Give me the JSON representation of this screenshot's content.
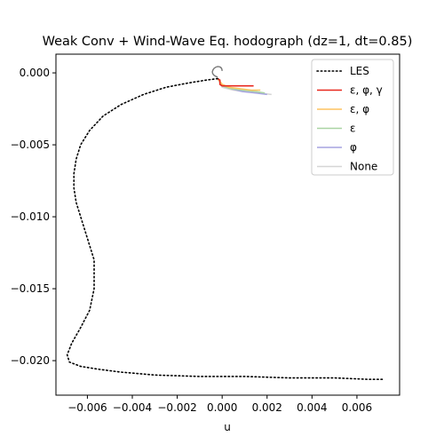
{
  "chart_data": {
    "type": "line",
    "title": "Weak Conv + Wind-Wave Eq. hodograph (dz=1, dt=0.85)",
    "xlabel": "u",
    "ylabel": "",
    "xlim": [
      -0.0074,
      0.0079
    ],
    "ylim": [
      -0.0224,
      0.0013
    ],
    "xticks": [
      -0.006,
      -0.004,
      -0.002,
      0.0,
      0.002,
      0.004,
      0.006
    ],
    "xtick_labels": [
      "−0.006",
      "−0.004",
      "−0.002",
      "0.000",
      "0.002",
      "0.004",
      "0.006"
    ],
    "yticks": [
      0.0,
      -0.005,
      -0.01,
      -0.015,
      -0.02
    ],
    "ytick_labels": [
      "0.000",
      "−0.005",
      "−0.010",
      "−0.015",
      "−0.020"
    ],
    "legend_position": "top-right",
    "grid": false,
    "series": [
      {
        "name": "LES",
        "color": "#000000",
        "style": "dotted",
        "x": [
          -0.0002,
          -0.0007,
          -0.0015,
          -0.0025,
          -0.0035,
          -0.0045,
          -0.0053,
          -0.0059,
          -0.0063,
          -0.0065,
          -0.0066,
          -0.0066,
          -0.0065,
          -0.0063,
          -0.0061,
          -0.0059,
          -0.0057,
          -0.0057,
          -0.0059,
          -0.0063,
          -0.0067,
          -0.0069,
          -0.0068,
          -0.0063,
          -0.0055,
          -0.0045,
          -0.003,
          -0.001,
          0.001,
          0.003,
          0.005,
          0.0065,
          0.0072
        ],
        "y": [
          -0.0004,
          -0.0005,
          -0.0007,
          -0.001,
          -0.0015,
          -0.0022,
          -0.003,
          -0.004,
          -0.005,
          -0.006,
          -0.007,
          -0.008,
          -0.009,
          -0.01,
          -0.011,
          -0.012,
          -0.013,
          -0.015,
          -0.0165,
          -0.0177,
          -0.0188,
          -0.0196,
          -0.0201,
          -0.0204,
          -0.0206,
          -0.0208,
          -0.021,
          -0.0211,
          -0.0211,
          -0.0212,
          -0.0212,
          -0.0213,
          -0.0213
        ]
      },
      {
        "name": "ε, φ, γ",
        "color": "#e8281e",
        "style": "solid",
        "x": [
          -0.0002,
          -0.0001,
          -0.0001,
          -0.0001,
          0.0,
          0.0003,
          0.0008,
          0.0014
        ],
        "y": [
          -0.0004,
          -0.0005,
          -0.0006,
          -0.0008,
          -0.0009,
          -0.0009,
          -0.0009,
          -0.0009
        ]
      },
      {
        "name": "ε, φ",
        "color": "#fec460",
        "style": "solid",
        "x": [
          -0.0002,
          -0.0001,
          0.0,
          0.0003,
          0.0008,
          0.0013,
          0.0017
        ],
        "y": [
          -0.0004,
          -0.0006,
          -0.0008,
          -0.001,
          -0.0011,
          -0.0012,
          -0.0012
        ]
      },
      {
        "name": "ε",
        "color": "#a9d4a3",
        "style": "solid",
        "x": [
          -0.0002,
          -0.0001,
          0.0,
          0.0004,
          0.0009,
          0.0015,
          0.0019
        ],
        "y": [
          -0.0004,
          -0.0006,
          -0.0009,
          -0.0011,
          -0.0012,
          -0.0013,
          -0.0014
        ]
      },
      {
        "name": "φ",
        "color": "#a5a3e0",
        "style": "solid",
        "x": [
          -0.0002,
          -0.0001,
          0.0,
          0.0004,
          0.0009,
          0.0015,
          0.002
        ],
        "y": [
          -0.0004,
          -0.0006,
          -0.0009,
          -0.0011,
          -0.0013,
          -0.0014,
          -0.0015
        ]
      },
      {
        "name": "None",
        "color": "#d6d6d6",
        "style": "solid",
        "x": [
          -0.0002,
          -0.0001,
          0.0,
          0.0005,
          0.001,
          0.0016,
          0.0022
        ],
        "y": [
          -0.0004,
          -0.0007,
          -0.001,
          -0.0012,
          -0.0013,
          -0.0014,
          -0.0015
        ]
      }
    ]
  }
}
